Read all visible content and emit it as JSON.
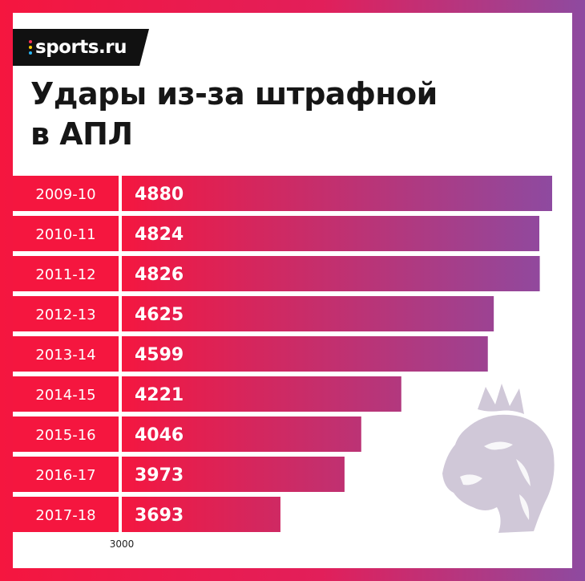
{
  "brand": {
    "name": "sports.ru",
    "dot_colors": [
      "#ff2d55",
      "#ffcc00",
      "#29b6f6"
    ]
  },
  "colors": {
    "bar_start": "#f5163f",
    "bar_end": "#8e4aa0",
    "lion": "#d0c8d8"
  },
  "chart_data": {
    "type": "bar",
    "orientation": "horizontal",
    "title": "Удары из-за штрафной\nв АПЛ",
    "categories": [
      "2009-10",
      "2010-11",
      "2011-12",
      "2012-13",
      "2013-14",
      "2014-15",
      "2015-16",
      "2016-17",
      "2017-18"
    ],
    "values": [
      4880,
      4824,
      4826,
      4625,
      4599,
      4221,
      4046,
      3973,
      3693
    ],
    "xlim": [
      3000,
      4880
    ],
    "x_ticks": [
      "3000"
    ],
    "grid": false,
    "legend": "none"
  },
  "watermark": {
    "icon": "premier-league-lion-icon"
  }
}
